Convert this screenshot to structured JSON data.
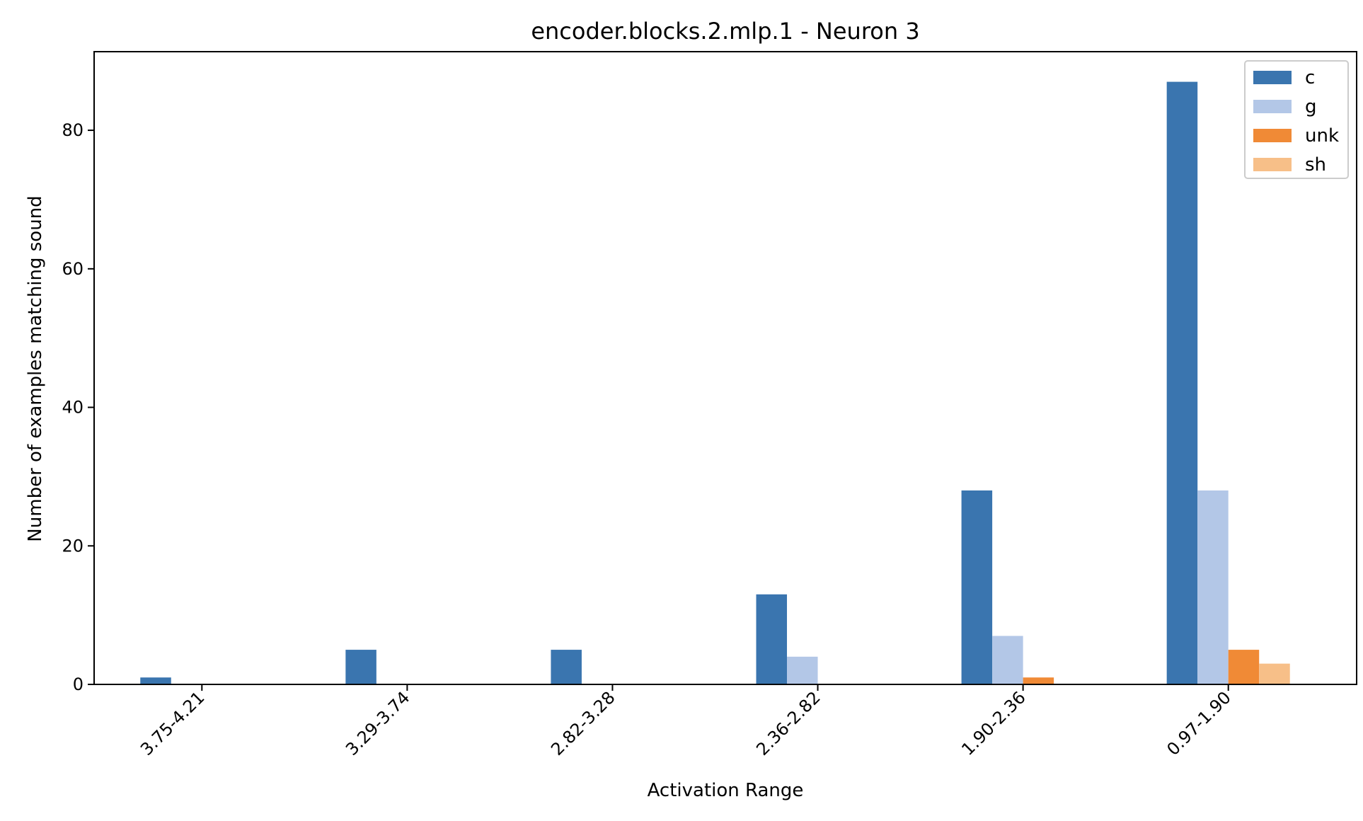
{
  "chart_data": {
    "type": "bar",
    "title": "encoder.blocks.2.mlp.1 - Neuron 3",
    "xlabel": "Activation Range",
    "ylabel": "Number of examples matching sound",
    "categories": [
      "3.75-4.21",
      "3.29-3.74",
      "2.82-3.28",
      "2.36-2.82",
      "1.90-2.36",
      "0.97-1.90"
    ],
    "series": [
      {
        "name": "c",
        "color": "#3a75af",
        "values": [
          1,
          5,
          5,
          13,
          28,
          87
        ]
      },
      {
        "name": "g",
        "color": "#b3c7e7",
        "values": [
          0,
          0,
          0,
          4,
          7,
          28
        ]
      },
      {
        "name": "unk",
        "color": "#f08a36",
        "values": [
          0,
          0,
          0,
          0,
          1,
          5
        ]
      },
      {
        "name": "sh",
        "color": "#f7bf88",
        "values": [
          0,
          0,
          0,
          0,
          0,
          3
        ]
      }
    ],
    "yticks": [
      0,
      20,
      40,
      60,
      80
    ],
    "ylim": [
      0,
      91.35
    ],
    "grid": false,
    "legend_position": "top-right"
  }
}
